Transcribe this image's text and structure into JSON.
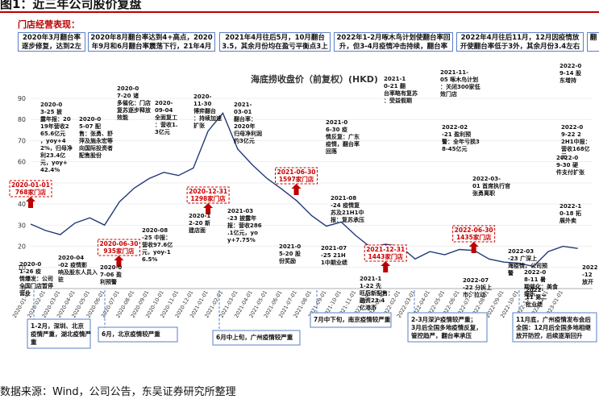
{
  "header": {
    "title": "图1：近三年公司股价复盘",
    "section_label": "门店经营表现："
  },
  "phases": [
    {
      "text": "2020年3月翻台率逐步修复，达到2左右"
    },
    {
      "text": "2020年8月翻台率达到4+高点，2020年9月和6月翻台率震荡下行，21年4月达3.1低点"
    },
    {
      "text": "2021年4月往后5月，10月翻台3.5，其余月份均在盈亏平衡点3上下徘徊"
    },
    {
      "text": "2022年1-2月啄木鸟计划使翻台率回升，但3-4月疫情冲击持续，翻台率2.5左右"
    },
    {
      "text": "2022年4月往后11月，12月因疫情放开使翻台率低于3外，其余月份3.4左右"
    },
    {
      "text": "翻"
    }
  ],
  "chart_data": {
    "type": "line",
    "title": "海底捞收盘价（前复权）(HKD)",
    "ylim": [
      0,
      90
    ],
    "yticks": [
      0,
      10,
      20,
      30,
      40,
      50,
      60,
      70,
      80,
      90
    ],
    "xticks": [
      "2020-01-01",
      "2020-02-01",
      "2020-03-01",
      "2020-04-01",
      "2020-05-01",
      "2020-06-01",
      "2020-07-01",
      "2020-08-01",
      "2020-09-01",
      "2020-10-01",
      "2020-11-01",
      "2020-12-01",
      "2021-01-01",
      "2021-02-01",
      "2021-03-01",
      "2021-04-01",
      "2021-05-01",
      "2021-06-01",
      "2021-07-01",
      "2021-08-01",
      "2021-09-01",
      "2021-10-01",
      "2021-11-01",
      "2021-12-01",
      "2022-01-01",
      "2022-02-01",
      "2022-03-01",
      "2022-04-01",
      "2022-05-01",
      "2022-06-01",
      "2022-07-01",
      "2022-08-01",
      "2022-09-01",
      "2022-10-01",
      "2022-11-01",
      "2022-12-01",
      "2023-01-01"
    ],
    "x": [
      "2020-01",
      "2020-02",
      "2020-03",
      "2020-04",
      "2020-05",
      "2020-06",
      "2020-07",
      "2020-08",
      "2020-09",
      "2020-10",
      "2020-11",
      "2020-12",
      "2021-01",
      "2021-02",
      "2021-03",
      "2021-04",
      "2021-05",
      "2021-06",
      "2021-07",
      "2021-08",
      "2021-09",
      "2021-10",
      "2021-11",
      "2021-12",
      "2022-01",
      "2022-02",
      "2022-03",
      "2022-04",
      "2022-05",
      "2022-06",
      "2022-07",
      "2022-08",
      "2022-09",
      "2022-10",
      "2022-11",
      "2022-12",
      "2023-01",
      "2023-02"
    ],
    "y": [
      30.5,
      27.5,
      25.5,
      31.0,
      33.5,
      30.0,
      41.0,
      47.5,
      52.0,
      55.0,
      53.5,
      57.0,
      74.5,
      83.0,
      66.0,
      58.5,
      52.0,
      47.0,
      41.5,
      34.5,
      29.5,
      31.5,
      25.0,
      19.5,
      21.0,
      20.0,
      14.0,
      17.5,
      16.0,
      18.5,
      18.0,
      14.0,
      12.5,
      12.0,
      10.5,
      17.5,
      20.0,
      19.0
    ],
    "store_markers": [
      {
        "date": "2020-01-01",
        "label": "2020-01-01",
        "stores": "768家门店"
      },
      {
        "date": "2020-06-30",
        "label": "2020-06-30",
        "stores": "935家门店"
      },
      {
        "date": "2020-12-31",
        "label": "2020-12-31",
        "stores": "1298家门店"
      },
      {
        "date": "2021-06-30",
        "label": "2021-06-30",
        "stores": "1597家门店"
      },
      {
        "date": "2021-12-31",
        "label": "2021-12-31",
        "stores": "1443家门店"
      },
      {
        "date": "2022-06-30",
        "label": "2022-06-30",
        "stores": "1435家门店"
      }
    ]
  },
  "annotations": [
    {
      "text": "2020-03-25 披露年报：2019年营收265.6亿元，yoy+42%，归母净利23.4亿元，yoy+42.4%"
    },
    {
      "text": "2020-05-07 配售：张勇、舒萍及施永宏等向国际投资者配售股份"
    },
    {
      "text": "2020-07-20 诸多催化：门店复苏逐步释放效能"
    },
    {
      "text": "2020-09-04 全面复工：营收1.3亿元"
    },
    {
      "text": "2020-11-30 博弈翻台：持续加速扩张"
    },
    {
      "text": "2021-03-01 翻台率：2020年归母净利润约3亿元"
    },
    {
      "text": "2021-06-30 疫情反复：广东疫情，翻台率回落"
    },
    {
      "text": "2021-10-21 翻台率略有复苏：受益假期"
    },
    {
      "text": "2021-11-05 啄木鸟计划：关闭300家低效门店"
    },
    {
      "text": "2022-02-21 盈利预警：全年亏损38-45亿元"
    },
    {
      "text": "2022-03-01 首席执行官张勇离职"
    },
    {
      "text": "2022-03-23 广深上海疫情，公司预警"
    },
    {
      "text": "2022-08-11 暑期催化：美食娱乐"
    },
    {
      "text": "2022-09-14 股东增持"
    },
    {
      "text": "2022-09-22 22H1中报：营收168亿元"
    },
    {
      "text": "2022-09-30 硬件支付扩张"
    },
    {
      "text": "2022-10-18 拓展外卖"
    },
    {
      "text": "2022-12 放开"
    },
    {
      "text": "2020-01-26 疫情爆发：公司全国门店暂停营业"
    },
    {
      "text": "2020-04-02 疫情影响及股东人员入驻"
    },
    {
      "text": "2020-07-06 盈利预警"
    },
    {
      "text": "2020-08-25 中报：营收97.6亿元，yoy-16.5%"
    },
    {
      "text": "2020-12-20 新建店面"
    },
    {
      "text": "2021-03-23 披露年报：营收286.1亿元，yoy+7.75%"
    },
    {
      "text": "2021-05-20 股份奖励"
    },
    {
      "text": "2021-07-25 21H1中期业绩"
    },
    {
      "text": "2021-08-24 疫情复苏及21H1中报：复苏承压"
    },
    {
      "text": "2021-11-22 先旺后新配售：融资23.4亿港币"
    },
    {
      "text": "2022-07-22 分拆上市：拉动"
    },
    {
      "text": "2022-11 第二批业绩"
    }
  ],
  "bottom_events": [
    {
      "text": "1-2月，深圳、北京疫情严重，湖北疫情严重"
    },
    {
      "text": "6月，北京疫情较严重"
    },
    {
      "text": "6月中上旬，广州疫情较严重"
    },
    {
      "text": "7月中下旬，南京疫情较严重"
    },
    {
      "text": "2-3月深沪疫情较严重；3月后全国多地疫情反复，管控趋严，翻台率承压"
    },
    {
      "text": "11月底，广州疫情发布会后全国：12月后全国多地相继放开防控，后续逐渐回升"
    }
  ],
  "source": "数据来源：Wind，公司公告，东吴证券研究所整理"
}
